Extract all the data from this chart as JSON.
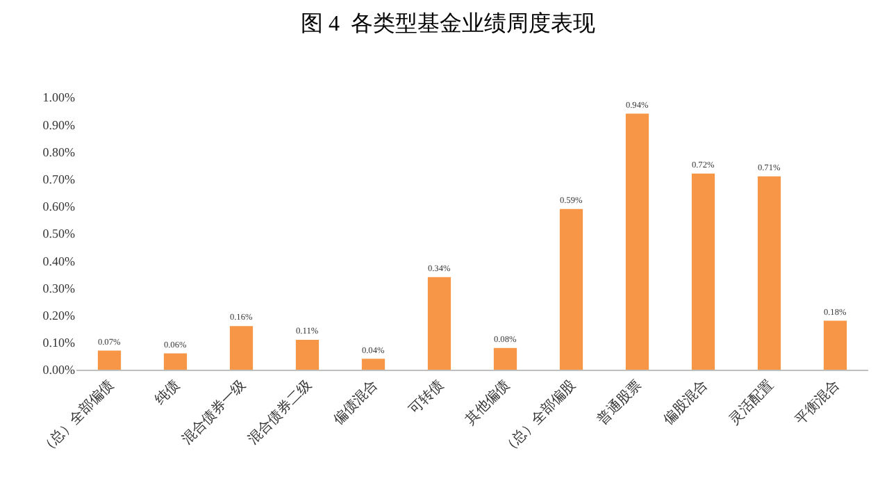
{
  "chart_data": {
    "type": "bar",
    "title": "图 4  各类型基金业绩周度表现",
    "categories": [
      "（总）全部偏债",
      "纯债",
      "混合债券一级",
      "混合债券二级",
      "偏债混合",
      "可转债",
      "其他偏债",
      "（总）全部偏股",
      "普通股票",
      "偏股混合",
      "灵活配置",
      "平衡混合"
    ],
    "values": [
      0.07,
      0.06,
      0.16,
      0.11,
      0.04,
      0.34,
      0.08,
      0.59,
      0.94,
      0.72,
      0.71,
      0.18
    ],
    "value_labels": [
      "0.07%",
      "0.06%",
      "0.16%",
      "0.11%",
      "0.04%",
      "0.34%",
      "0.08%",
      "0.59%",
      "0.94%",
      "0.72%",
      "0.71%",
      "0.18%"
    ],
    "color": "#f79646",
    "ylim": [
      0,
      1
    ],
    "yticks": [
      {
        "value": 0,
        "label": "0.00%"
      },
      {
        "value": 0.1,
        "label": "0.10%"
      },
      {
        "value": 0.2,
        "label": "0.20%"
      },
      {
        "value": 0.3,
        "label": "0.30%"
      },
      {
        "value": 0.4,
        "label": "0.40%"
      },
      {
        "value": 0.5,
        "label": "0.50%"
      },
      {
        "value": 0.6,
        "label": "0.60%"
      },
      {
        "value": 0.7,
        "label": "0.70%"
      },
      {
        "value": 0.8,
        "label": "0.80%"
      },
      {
        "value": 0.9,
        "label": "0.90%"
      },
      {
        "value": 1,
        "label": "1.00%"
      }
    ],
    "grid": false
  }
}
